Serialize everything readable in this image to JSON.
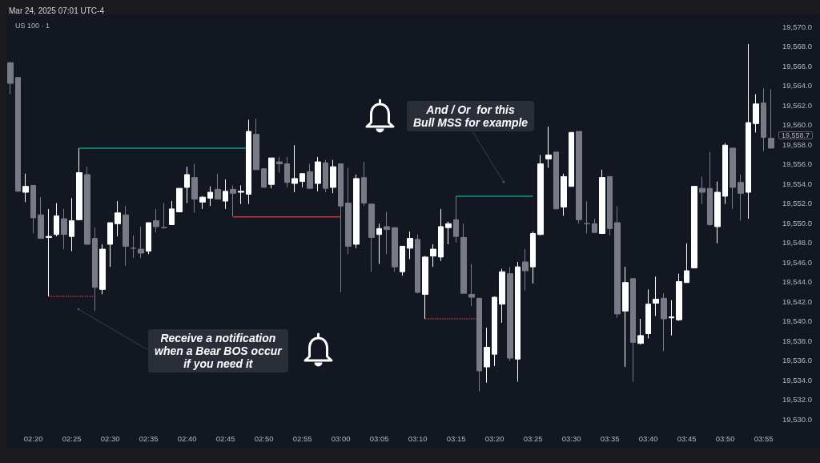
{
  "chart_data": {
    "type": "candlestick",
    "title": "Mar 24, 2025 07:01 UTC-4",
    "subtitle": "US 100 · 1",
    "categories": [
      null,
      null,
      null,
      "02:20",
      null,
      null,
      null,
      null,
      "02:25",
      null,
      null,
      null,
      null,
      "02:30",
      null,
      null,
      null,
      null,
      "02:35",
      null,
      null,
      null,
      null,
      "02:40",
      null,
      null,
      null,
      null,
      "02:45",
      null,
      null,
      null,
      null,
      "02:50",
      null,
      null,
      null,
      null,
      "02:55",
      null,
      null,
      null,
      null,
      "03:00",
      null,
      null,
      null,
      null,
      "03:05",
      null,
      null,
      null,
      null,
      "03:10",
      null,
      null,
      null,
      null,
      "03:15",
      null,
      null,
      null,
      null,
      "03:20",
      null,
      null,
      null,
      null,
      "03:25",
      null,
      null,
      null,
      null,
      "03:30",
      null,
      null,
      null,
      null,
      "03:35",
      null,
      null,
      null,
      null,
      "03:40",
      null,
      null,
      null,
      null,
      "03:45",
      null,
      null,
      null,
      null,
      "03:50",
      null,
      null,
      null,
      null,
      "03:55",
      null
    ],
    "ohlc": [
      [
        19566.3,
        19566.4,
        19563.1,
        19564.2
      ],
      [
        19564.8,
        19564.8,
        19553.2,
        19553.2
      ],
      [
        19553.1,
        19555.0,
        19552.1,
        19553.7
      ],
      [
        19553.8,
        19553.8,
        19548.9,
        19550.5
      ],
      [
        19550.8,
        19552.6,
        19548.4,
        19548.4
      ],
      [
        19548.5,
        19551.4,
        19542.5,
        19548.6
      ],
      [
        19548.8,
        19552.0,
        19548.6,
        19550.7
      ],
      [
        19550.4,
        19551.4,
        19547.3,
        19548.8
      ],
      [
        19548.6,
        19552.5,
        19547.1,
        19550.2
      ],
      [
        19550.3,
        19557.6,
        19550.3,
        19555.1
      ],
      [
        19554.9,
        19555.7,
        19547.8,
        19547.8
      ],
      [
        19548.4,
        19549.5,
        19541.0,
        19543.4
      ],
      [
        19543.2,
        19547.8,
        19542.7,
        19547.3
      ],
      [
        19547.8,
        19550.0,
        19545.5,
        19550.0
      ],
      [
        19549.9,
        19552.2,
        19548.6,
        19551.0
      ],
      [
        19550.8,
        19551.7,
        19545.6,
        19547.6
      ],
      [
        19547.4,
        19548.7,
        19546.4,
        19547.4
      ],
      [
        19547.3,
        19549.6,
        19546.4,
        19546.9
      ],
      [
        19547.1,
        19550.0,
        19546.8,
        19550.0
      ],
      [
        19550.2,
        19551.4,
        19549.0,
        19549.6
      ],
      [
        19549.5,
        19552.0,
        19549.4,
        19549.5
      ],
      [
        19549.8,
        19552.2,
        19549.8,
        19551.4
      ],
      [
        19551.1,
        19553.5,
        19551.1,
        19553.5
      ],
      [
        19553.6,
        19555.7,
        19552.0,
        19554.9
      ],
      [
        19554.6,
        19556.0,
        19551.0,
        19552.4
      ],
      [
        19552.1,
        19552.7,
        19551.4,
        19552.6
      ],
      [
        19552.5,
        19553.7,
        19551.7,
        19553.1
      ],
      [
        19553.4,
        19555.0,
        19552.4,
        19552.4
      ],
      [
        19552.2,
        19554.4,
        19551.4,
        19553.2
      ],
      [
        19553.4,
        19553.8,
        19550.6,
        19553.0
      ],
      [
        19553.1,
        19553.8,
        19551.9,
        19553.2
      ],
      [
        19552.9,
        19560.5,
        19551.9,
        19559.3
      ],
      [
        19559.0,
        19560.6,
        19555.4,
        19555.4
      ],
      [
        19555.5,
        19555.5,
        19553.6,
        19553.6
      ],
      [
        19553.9,
        19556.6,
        19553.5,
        19556.6
      ],
      [
        19556.2,
        19556.7,
        19555.1,
        19556.0
      ],
      [
        19556.0,
        19556.7,
        19553.6,
        19554.1
      ],
      [
        19554.0,
        19557.9,
        19553.1,
        19554.5
      ],
      [
        19554.2,
        19555.0,
        19553.6,
        19555.0
      ],
      [
        19555.2,
        19556.0,
        19553.5,
        19553.5
      ],
      [
        19554.0,
        19556.7,
        19553.2,
        19556.2
      ],
      [
        19556.1,
        19556.4,
        19553.1,
        19553.5
      ],
      [
        19553.6,
        19556.4,
        19553.0,
        19555.7
      ],
      [
        19556.0,
        19556.0,
        19542.9,
        19551.7
      ],
      [
        19552.0,
        19555.6,
        19546.8,
        19547.6
      ],
      [
        19547.8,
        19554.9,
        19547.4,
        19554.5
      ],
      [
        19554.6,
        19556.2,
        19551.7,
        19552.0
      ],
      [
        19551.9,
        19551.9,
        19545.0,
        19548.5
      ],
      [
        19548.8,
        19549.9,
        19545.8,
        19549.4
      ],
      [
        19549.6,
        19551.1,
        19546.8,
        19549.3
      ],
      [
        19549.5,
        19549.5,
        19545.0,
        19545.5
      ],
      [
        19545.0,
        19547.6,
        19544.6,
        19547.6
      ],
      [
        19547.4,
        19549.1,
        19546.3,
        19548.4
      ],
      [
        19548.3,
        19548.8,
        19542.8,
        19542.9
      ],
      [
        19542.7,
        19546.6,
        19540.2,
        19546.5
      ],
      [
        19546.6,
        19547.8,
        19545.5,
        19547.3
      ],
      [
        19546.5,
        19551.4,
        19546.1,
        19549.6
      ],
      [
        19549.5,
        19550.1,
        19547.8,
        19549.9
      ],
      [
        19550.3,
        19552.7,
        19548.0,
        19548.6
      ],
      [
        19548.5,
        19549.9,
        19542.8,
        19542.8
      ],
      [
        19542.7,
        19545.8,
        19541.5,
        19542.4
      ],
      [
        19542.3,
        19542.3,
        19532.8,
        19534.9
      ],
      [
        19535.3,
        19539.3,
        19533.7,
        19537.3
      ],
      [
        19536.6,
        19542.5,
        19535.4,
        19542.4
      ],
      [
        19541.7,
        19545.3,
        19539.8,
        19545.0
      ],
      [
        19544.8,
        19545.5,
        19535.9,
        19536.2
      ],
      [
        19536.1,
        19546.0,
        19533.8,
        19545.5
      ],
      [
        19546.0,
        19547.3,
        19543.1,
        19545.1
      ],
      [
        19545.5,
        19549.1,
        19543.8,
        19548.9
      ],
      [
        19548.8,
        19556.9,
        19548.7,
        19556.0
      ],
      [
        19556.5,
        19559.8,
        19555.6,
        19556.9
      ],
      [
        19557.2,
        19557.2,
        19551.4,
        19551.4
      ],
      [
        19551.6,
        19555.0,
        19550.7,
        19554.7
      ],
      [
        19553.7,
        19559.2,
        19553.7,
        19559.2
      ],
      [
        19559.3,
        19559.3,
        19549.9,
        19550.3
      ],
      [
        19549.9,
        19552.2,
        19548.9,
        19549.9
      ],
      [
        19549.9,
        19550.4,
        19549.0,
        19549.0
      ],
      [
        19548.9,
        19555.4,
        19548.9,
        19554.6
      ],
      [
        19554.7,
        19554.7,
        19548.7,
        19549.4
      ],
      [
        19550.0,
        19551.7,
        19540.3,
        19540.7
      ],
      [
        19541.0,
        19545.5,
        19535.3,
        19543.9
      ],
      [
        19544.3,
        19544.3,
        19533.8,
        19537.8
      ],
      [
        19537.7,
        19540.2,
        19537.6,
        19538.5
      ],
      [
        19538.7,
        19543.2,
        19538.2,
        19541.7
      ],
      [
        19541.8,
        19544.5,
        19540.5,
        19542.2
      ],
      [
        19542.3,
        19542.8,
        19536.9,
        19540.2
      ],
      [
        19540.3,
        19542.1,
        19538.5,
        19540.4
      ],
      [
        19540.1,
        19544.8,
        19540.0,
        19544.0
      ],
      [
        19543.9,
        19547.9,
        19543.9,
        19545.1
      ],
      [
        19545.4,
        19553.7,
        19545.4,
        19553.7
      ],
      [
        19553.5,
        19554.7,
        19551.9,
        19553.1
      ],
      [
        19553.5,
        19557.2,
        19549.7,
        19549.8
      ],
      [
        19549.6,
        19554.2,
        19547.9,
        19553.1
      ],
      [
        19552.7,
        19558.1,
        19551.9,
        19557.9
      ],
      [
        19557.6,
        19557.6,
        19551.4,
        19553.6
      ],
      [
        19554.1,
        19554.9,
        19550.2,
        19553.0
      ],
      [
        19553.1,
        19568.2,
        19550.4,
        19560.2
      ],
      [
        19560.1,
        19563.1,
        19559.2,
        19562.1
      ],
      [
        19562.2,
        19563.7,
        19557.3,
        19558.7
      ],
      [
        19558.6,
        19563.6,
        19557.6,
        19557.6
      ]
    ],
    "colors": [
      "#787b86",
      "#787b86",
      "#ffffff",
      "#787b86",
      "#787b86",
      "#ffffff",
      "#ffffff",
      "#787b86",
      "#ffffff",
      "#ffffff",
      "#787b86",
      "#787b86",
      "#ffffff",
      "#ffffff",
      "#ffffff",
      "#787b86",
      "#787b86",
      "#787b86",
      "#ffffff",
      "#787b86",
      "#787b86",
      "#ffffff",
      "#ffffff",
      "#ffffff",
      "#787b86",
      "#ffffff",
      "#ffffff",
      "#787b86",
      "#ffffff",
      "#787b86",
      "#ffffff",
      "#ffffff",
      "#787b86",
      "#787b86",
      "#ffffff",
      "#787b86",
      "#787b86",
      "#ffffff",
      "#ffffff",
      "#787b86",
      "#ffffff",
      "#787b86",
      "#ffffff",
      "#787b86",
      "#787b86",
      "#ffffff",
      "#787b86",
      "#787b86",
      "#ffffff",
      "#787b86",
      "#787b86",
      "#ffffff",
      "#ffffff",
      "#787b86",
      "#ffffff",
      "#ffffff",
      "#ffffff",
      "#ffffff",
      "#787b86",
      "#787b86",
      "#787b86",
      "#787b86",
      "#ffffff",
      "#ffffff",
      "#ffffff",
      "#787b86",
      "#ffffff",
      "#787b86",
      "#ffffff",
      "#ffffff",
      "#ffffff",
      "#787b86",
      "#ffffff",
      "#ffffff",
      "#787b86",
      "#787b86",
      "#787b86",
      "#ffffff",
      "#787b86",
      "#787b86",
      "#ffffff",
      "#787b86",
      "#ffffff",
      "#ffffff",
      "#ffffff",
      "#787b86",
      "#ffffff",
      "#ffffff",
      "#ffffff",
      "#ffffff",
      "#787b86",
      "#787b86",
      "#ffffff",
      "#ffffff",
      "#787b86",
      "#787b86",
      "#ffffff",
      "#ffffff",
      "#787b86",
      "#787b86"
    ],
    "series": [
      {
        "type": "line",
        "color": "#089981",
        "line_style": "solid",
        "values": [
          null,
          null,
          null,
          null,
          null,
          null,
          null,
          null,
          null,
          19557.6,
          19557.6,
          19557.6,
          19557.6,
          19557.6,
          19557.6,
          19557.6,
          19557.6,
          19557.6,
          19557.6,
          19557.6,
          19557.6,
          19557.6,
          19557.6,
          19557.6,
          19557.6,
          19557.6,
          19557.6,
          19557.6,
          19557.6,
          19557.6,
          19557.6,
          19557.6,
          null,
          null,
          null,
          null,
          null,
          null,
          null,
          null,
          null,
          null,
          null,
          null,
          null,
          null,
          null,
          null,
          null,
          null,
          null,
          null,
          null,
          null,
          null,
          null,
          null,
          null,
          null,
          null,
          null,
          null,
          null,
          null,
          null,
          null,
          null,
          null,
          null,
          null,
          null,
          null,
          null,
          null,
          null,
          null,
          null,
          null,
          null,
          null,
          null,
          null,
          null,
          null,
          null,
          null,
          null,
          null,
          null,
          null,
          null,
          null,
          null,
          null,
          null,
          null,
          null,
          null,
          null,
          null
        ]
      },
      {
        "type": "line",
        "color": "#c8343e",
        "line_style": "solid",
        "values": [
          null,
          null,
          null,
          null,
          null,
          null,
          null,
          null,
          null,
          null,
          null,
          null,
          null,
          null,
          null,
          null,
          null,
          null,
          null,
          null,
          null,
          null,
          null,
          null,
          null,
          null,
          null,
          null,
          null,
          19550.6,
          19550.6,
          19550.6,
          19550.6,
          19550.6,
          19550.6,
          19550.6,
          19550.6,
          19550.6,
          19550.6,
          19550.6,
          19550.6,
          19550.6,
          19550.6,
          19550.6,
          null,
          null,
          null,
          null,
          null,
          null,
          null,
          null,
          null,
          null,
          null,
          null,
          null,
          null,
          null,
          null,
          null,
          null,
          null,
          null,
          null,
          null,
          null,
          null,
          null,
          null,
          null,
          null,
          null,
          null,
          null,
          null,
          null,
          null,
          null,
          null,
          null,
          null,
          null,
          null,
          null,
          null,
          null,
          null,
          null,
          null,
          null,
          null,
          null,
          null,
          null,
          null,
          null,
          null,
          null,
          null
        ]
      },
      {
        "type": "line",
        "color": "#c8343e",
        "line_style": "dotted",
        "values": [
          null,
          null,
          null,
          null,
          null,
          19542.5,
          19542.5,
          19542.5,
          19542.5,
          19542.5,
          19542.5,
          19542.5,
          null,
          null,
          null,
          null,
          null,
          null,
          null,
          null,
          null,
          null,
          null,
          null,
          null,
          null,
          null,
          null,
          null,
          null,
          null,
          null,
          null,
          null,
          null,
          null,
          null,
          null,
          null,
          null,
          null,
          null,
          null,
          null,
          null,
          null,
          null,
          null,
          null,
          null,
          null,
          null,
          null,
          null,
          null,
          null,
          null,
          null,
          null,
          null,
          null,
          null,
          null,
          null,
          null,
          null,
          null,
          null,
          null,
          null,
          null,
          null,
          null,
          null,
          null,
          null,
          null,
          null,
          null,
          null,
          null,
          null,
          null,
          null,
          null,
          null,
          null,
          null,
          null,
          null,
          null,
          null,
          null,
          null,
          null,
          null,
          null,
          null,
          null,
          null
        ]
      },
      {
        "type": "line",
        "color": "#c8343e",
        "line_style": "dotted",
        "values": [
          null,
          null,
          null,
          null,
          null,
          null,
          null,
          null,
          null,
          null,
          null,
          null,
          null,
          null,
          null,
          null,
          null,
          null,
          null,
          null,
          null,
          null,
          null,
          null,
          null,
          null,
          null,
          null,
          null,
          null,
          null,
          null,
          null,
          null,
          null,
          null,
          null,
          null,
          null,
          null,
          null,
          null,
          null,
          null,
          null,
          null,
          null,
          null,
          null,
          null,
          null,
          null,
          null,
          null,
          19540.2,
          19540.2,
          19540.2,
          19540.2,
          19540.2,
          19540.2,
          19540.2,
          19540.2,
          null,
          null,
          null,
          null,
          null,
          null,
          null,
          null,
          null,
          null,
          null,
          null,
          null,
          null,
          null,
          null,
          null,
          null,
          null,
          null,
          null,
          null,
          null,
          null,
          null,
          null,
          null,
          null,
          null,
          null,
          null,
          null,
          null,
          null,
          null,
          null,
          null,
          null
        ]
      },
      {
        "type": "line",
        "color": "#089981",
        "line_style": "solid",
        "values": [
          null,
          null,
          null,
          null,
          null,
          null,
          null,
          null,
          null,
          null,
          null,
          null,
          null,
          null,
          null,
          null,
          null,
          null,
          null,
          null,
          null,
          null,
          null,
          null,
          null,
          null,
          null,
          null,
          null,
          null,
          null,
          null,
          null,
          null,
          null,
          null,
          null,
          null,
          null,
          null,
          null,
          null,
          null,
          null,
          null,
          null,
          null,
          null,
          null,
          null,
          null,
          null,
          null,
          null,
          null,
          null,
          null,
          null,
          19552.7,
          19552.7,
          19552.7,
          19552.7,
          19552.7,
          19552.7,
          19552.7,
          19552.7,
          19552.7,
          19552.7,
          19552.7,
          null,
          null,
          null,
          null,
          null,
          null,
          null,
          null,
          null,
          null,
          null,
          null,
          null,
          null,
          null,
          null,
          null,
          null,
          null,
          null,
          null,
          null,
          null,
          null,
          null,
          null,
          null,
          null,
          null,
          null,
          null
        ]
      }
    ],
    "ylim": [
      19530,
      19570
    ],
    "yticks": [
      {
        "value": 19530,
        "label": "19,530.0"
      },
      {
        "value": 19532,
        "label": "19,532.0"
      },
      {
        "value": 19534,
        "label": "19,534.0"
      },
      {
        "value": 19536,
        "label": "19,536.0"
      },
      {
        "value": 19538,
        "label": "19,538.0"
      },
      {
        "value": 19540,
        "label": "19,540.0"
      },
      {
        "value": 19542,
        "label": "19,542.0"
      },
      {
        "value": 19544,
        "label": "19,544.0"
      },
      {
        "value": 19546,
        "label": "19,546.0"
      },
      {
        "value": 19548,
        "label": "19,548.0"
      },
      {
        "value": 19550,
        "label": "19,550.0"
      },
      {
        "value": 19552,
        "label": "19,552.0"
      },
      {
        "value": 19554,
        "label": "19,554.0"
      },
      {
        "value": 19556,
        "label": "19,556.0"
      },
      {
        "value": 19558,
        "label": "19,558.0"
      },
      {
        "value": 19560,
        "label": "19,560.0"
      },
      {
        "value": 19562,
        "label": "19,562.0"
      },
      {
        "value": 19564,
        "label": "19,564.0"
      },
      {
        "value": 19566,
        "label": "19,566.0"
      },
      {
        "value": 19568,
        "label": "19,568.0"
      },
      {
        "value": 19570,
        "label": "19,570.0"
      }
    ],
    "annotations": [
      "And / Or  for this\nBull MSS for example",
      "Receive a notification\nwhen a Bear BOS occur\nif you need it",
      "19,558.7"
    ]
  }
}
